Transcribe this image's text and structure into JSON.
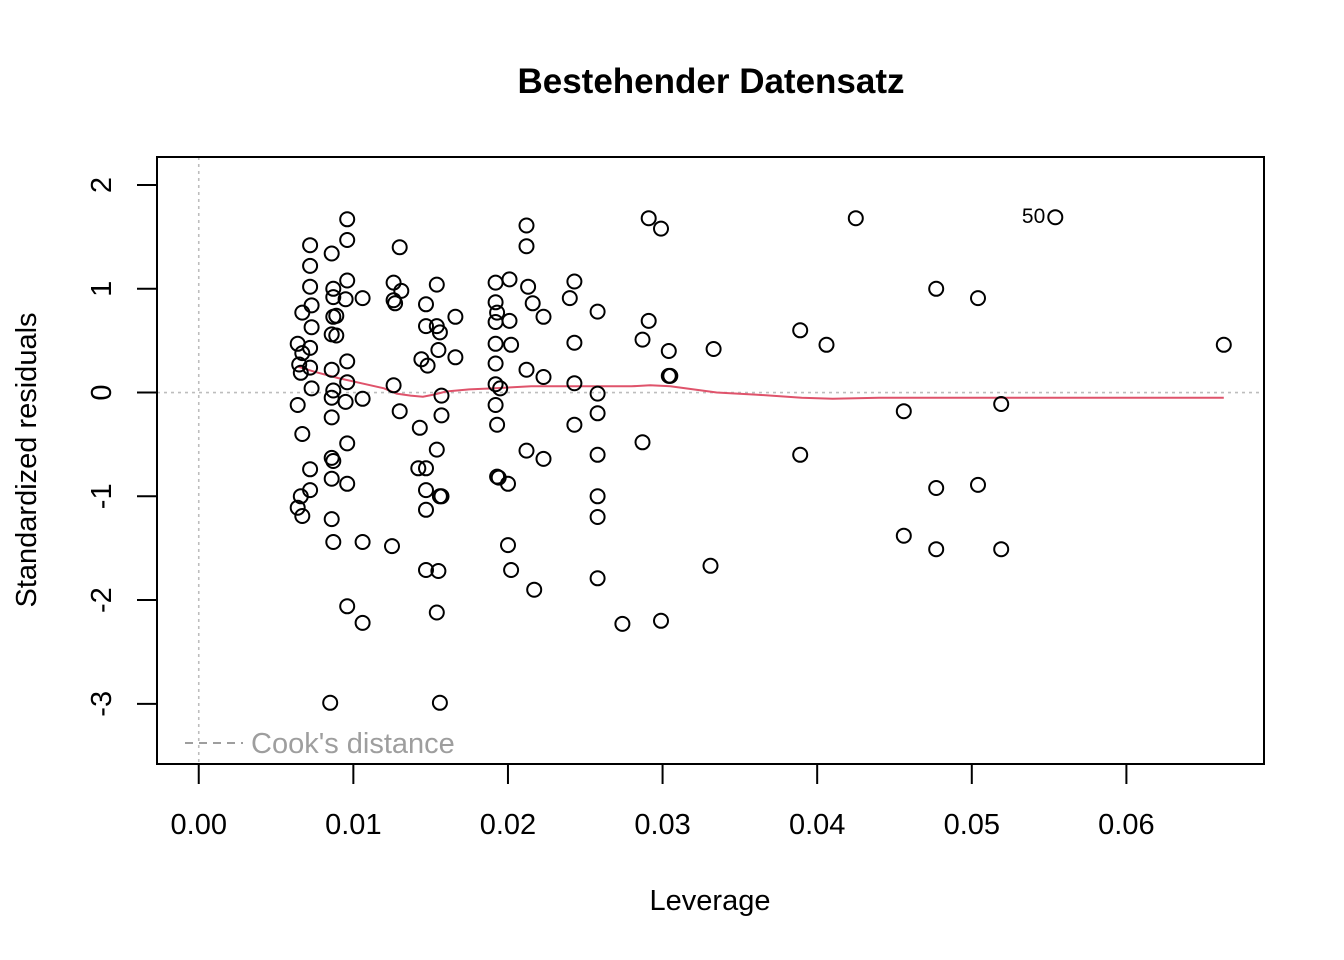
{
  "chart_data": {
    "type": "scatter",
    "title": "Bestehender Datensatz",
    "xlabel": "Leverage",
    "ylabel": "Standardized residuals",
    "xlim": [
      -0.0027,
      0.0689
    ],
    "ylim": [
      -3.58,
      2.27
    ],
    "x_ticks": [
      0.0,
      0.01,
      0.02,
      0.03,
      0.04,
      0.05,
      0.06
    ],
    "x_tick_labels": [
      "0.00",
      "0.01",
      "0.02",
      "0.03",
      "0.04",
      "0.05",
      "0.06"
    ],
    "y_ticks": [
      -3,
      -2,
      -1,
      0,
      1,
      2
    ],
    "y_tick_labels": [
      "-3",
      "-2",
      "-1",
      "0",
      "1",
      "2"
    ],
    "legend": {
      "label": "Cook's distance",
      "position": "bottom-left"
    },
    "annotations": [
      {
        "text": "50",
        "x": 0.0554,
        "y": 1.69
      }
    ],
    "colors": {
      "points": "#000000",
      "smooth": "#df536b",
      "reference": "#bdbdbd",
      "legend": "#9e9e9e"
    },
    "points": [
      [
        0.0064,
        0.47
      ],
      [
        0.0065,
        0.27
      ],
      [
        0.0066,
        0.19
      ],
      [
        0.0067,
        0.38
      ],
      [
        0.0067,
        0.77
      ],
      [
        0.0064,
        -0.12
      ],
      [
        0.0067,
        -0.4
      ],
      [
        0.0064,
        -1.11
      ],
      [
        0.0066,
        -1.0
      ],
      [
        0.0067,
        -1.19
      ],
      [
        0.0072,
        1.42
      ],
      [
        0.0072,
        1.22
      ],
      [
        0.0072,
        1.02
      ],
      [
        0.0073,
        0.84
      ],
      [
        0.0073,
        0.63
      ],
      [
        0.0072,
        0.43
      ],
      [
        0.0072,
        0.24
      ],
      [
        0.0073,
        0.04
      ],
      [
        0.0072,
        -0.74
      ],
      [
        0.0072,
        -0.94
      ],
      [
        0.0086,
        1.34
      ],
      [
        0.0087,
        1.0
      ],
      [
        0.0087,
        0.92
      ],
      [
        0.0087,
        0.73
      ],
      [
        0.0089,
        0.74
      ],
      [
        0.0086,
        0.56
      ],
      [
        0.0089,
        0.55
      ],
      [
        0.0086,
        0.22
      ],
      [
        0.0087,
        0.02
      ],
      [
        0.0086,
        -0.05
      ],
      [
        0.0086,
        -0.24
      ],
      [
        0.0086,
        -0.63
      ],
      [
        0.0087,
        -0.66
      ],
      [
        0.0086,
        -0.83
      ],
      [
        0.0086,
        -1.22
      ],
      [
        0.0087,
        -1.44
      ],
      [
        0.0085,
        -2.99
      ],
      [
        0.0096,
        1.67
      ],
      [
        0.0096,
        1.47
      ],
      [
        0.0096,
        1.08
      ],
      [
        0.0095,
        0.9
      ],
      [
        0.0096,
        0.3
      ],
      [
        0.0096,
        0.1
      ],
      [
        0.0095,
        -0.09
      ],
      [
        0.0096,
        -0.49
      ],
      [
        0.0096,
        -0.88
      ],
      [
        0.0096,
        -2.06
      ],
      [
        0.0106,
        0.91
      ],
      [
        0.0106,
        -0.06
      ],
      [
        0.0106,
        -1.44
      ],
      [
        0.0106,
        -2.22
      ],
      [
        0.0126,
        1.06
      ],
      [
        0.0126,
        0.89
      ],
      [
        0.0127,
        0.86
      ],
      [
        0.0126,
        0.07
      ],
      [
        0.0125,
        -1.48
      ],
      [
        0.013,
        1.4
      ],
      [
        0.0131,
        0.98
      ],
      [
        0.013,
        -0.18
      ],
      [
        0.0143,
        -0.34
      ],
      [
        0.0144,
        0.32
      ],
      [
        0.0142,
        -0.73
      ],
      [
        0.0147,
        0.85
      ],
      [
        0.0147,
        0.64
      ],
      [
        0.0148,
        0.26
      ],
      [
        0.0147,
        -0.73
      ],
      [
        0.0147,
        -0.94
      ],
      [
        0.0147,
        -1.13
      ],
      [
        0.0147,
        -1.71
      ],
      [
        0.0154,
        1.04
      ],
      [
        0.0154,
        0.64
      ],
      [
        0.0156,
        0.58
      ],
      [
        0.0155,
        0.41
      ],
      [
        0.0157,
        -0.03
      ],
      [
        0.0157,
        -0.22
      ],
      [
        0.0154,
        -0.55
      ],
      [
        0.0156,
        -1.0
      ],
      [
        0.0157,
        -1.0
      ],
      [
        0.0155,
        -1.72
      ],
      [
        0.0154,
        -2.12
      ],
      [
        0.0156,
        -2.99
      ],
      [
        0.0166,
        0.73
      ],
      [
        0.0166,
        0.34
      ],
      [
        0.0192,
        1.06
      ],
      [
        0.0192,
        0.87
      ],
      [
        0.0193,
        0.77
      ],
      [
        0.0192,
        0.68
      ],
      [
        0.0192,
        0.47
      ],
      [
        0.0192,
        0.28
      ],
      [
        0.0192,
        0.08
      ],
      [
        0.0195,
        0.04
      ],
      [
        0.0192,
        -0.12
      ],
      [
        0.0193,
        -0.31
      ],
      [
        0.0193,
        -0.81
      ],
      [
        0.0194,
        -0.82
      ],
      [
        0.0201,
        1.09
      ],
      [
        0.0201,
        0.69
      ],
      [
        0.0202,
        0.46
      ],
      [
        0.02,
        -0.88
      ],
      [
        0.02,
        -1.47
      ],
      [
        0.0202,
        -1.71
      ],
      [
        0.0212,
        1.61
      ],
      [
        0.0212,
        1.41
      ],
      [
        0.0213,
        1.02
      ],
      [
        0.0216,
        0.86
      ],
      [
        0.0212,
        0.22
      ],
      [
        0.0212,
        -0.56
      ],
      [
        0.0217,
        -1.9
      ],
      [
        0.0223,
        0.73
      ],
      [
        0.0223,
        0.15
      ],
      [
        0.0223,
        -0.64
      ],
      [
        0.024,
        0.91
      ],
      [
        0.0243,
        1.07
      ],
      [
        0.0243,
        0.48
      ],
      [
        0.0243,
        0.09
      ],
      [
        0.0243,
        -0.31
      ],
      [
        0.0258,
        0.78
      ],
      [
        0.0258,
        -0.01
      ],
      [
        0.0258,
        -0.2
      ],
      [
        0.0258,
        -0.6
      ],
      [
        0.0258,
        -1.0
      ],
      [
        0.0258,
        -1.2
      ],
      [
        0.0258,
        -1.79
      ],
      [
        0.0274,
        -2.23
      ],
      [
        0.0287,
        0.51
      ],
      [
        0.0287,
        -0.48
      ],
      [
        0.0291,
        1.68
      ],
      [
        0.0291,
        0.69
      ],
      [
        0.0299,
        1.58
      ],
      [
        0.0299,
        -2.2
      ],
      [
        0.0304,
        0.4
      ],
      [
        0.0304,
        0.16
      ],
      [
        0.0305,
        0.16
      ],
      [
        0.0331,
        -1.67
      ],
      [
        0.0333,
        0.42
      ],
      [
        0.0389,
        0.6
      ],
      [
        0.0389,
        -0.6
      ],
      [
        0.0406,
        0.46
      ],
      [
        0.0425,
        1.68
      ],
      [
        0.0456,
        -0.18
      ],
      [
        0.0456,
        -1.38
      ],
      [
        0.0477,
        1.0
      ],
      [
        0.0477,
        -0.92
      ],
      [
        0.0477,
        -1.51
      ],
      [
        0.0504,
        0.91
      ],
      [
        0.0504,
        -0.89
      ],
      [
        0.0519,
        -0.11
      ],
      [
        0.0519,
        -1.51
      ],
      [
        0.0554,
        1.69
      ],
      [
        0.0663,
        0.46
      ]
    ],
    "smooth_line": [
      [
        0.0064,
        0.25
      ],
      [
        0.0075,
        0.2
      ],
      [
        0.009,
        0.14
      ],
      [
        0.0105,
        0.09
      ],
      [
        0.012,
        0.04
      ],
      [
        0.0128,
        -0.01
      ],
      [
        0.0137,
        -0.03
      ],
      [
        0.0145,
        -0.04
      ],
      [
        0.0152,
        -0.02
      ],
      [
        0.016,
        0.01
      ],
      [
        0.0175,
        0.03
      ],
      [
        0.019,
        0.04
      ],
      [
        0.0215,
        0.06
      ],
      [
        0.024,
        0.06
      ],
      [
        0.0262,
        0.06
      ],
      [
        0.028,
        0.06
      ],
      [
        0.0292,
        0.07
      ],
      [
        0.0305,
        0.06
      ],
      [
        0.032,
        0.03
      ],
      [
        0.0335,
        0.0
      ],
      [
        0.036,
        -0.02
      ],
      [
        0.039,
        -0.05
      ],
      [
        0.041,
        -0.06
      ],
      [
        0.044,
        -0.05
      ],
      [
        0.048,
        -0.05
      ],
      [
        0.052,
        -0.05
      ],
      [
        0.057,
        -0.05
      ],
      [
        0.062,
        -0.05
      ],
      [
        0.0663,
        -0.05
      ]
    ]
  }
}
